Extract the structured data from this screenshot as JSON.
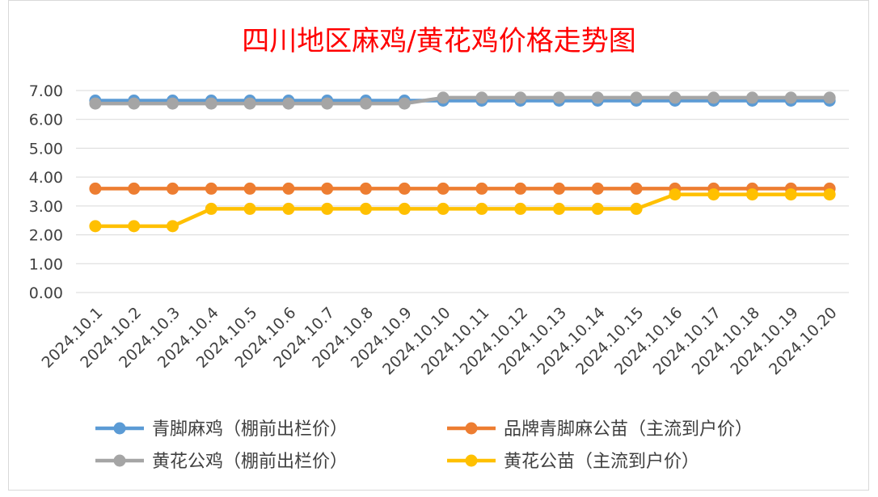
{
  "chart_data": {
    "type": "line",
    "title": "四川地区麻鸡/黄花鸡价格走势图",
    "title_color": "#ff0000",
    "categories": [
      "2024.10.1",
      "2024.10.2",
      "2024.10.3",
      "2024.10.4",
      "2024.10.5",
      "2024.10.6",
      "2024.10.7",
      "2024.10.8",
      "2024.10.9",
      "2024.10.10",
      "2024.10.11",
      "2024.10.12",
      "2024.10.13",
      "2024.10.14",
      "2024.10.15",
      "2024.10.16",
      "2024.10.17",
      "2024.10.18",
      "2024.10.19",
      "2024.10.20"
    ],
    "ylim": [
      0,
      7
    ],
    "yticks": [
      "0.00",
      "1.00",
      "2.00",
      "3.00",
      "4.00",
      "5.00",
      "6.00",
      "7.00"
    ],
    "grid": true,
    "legend_position": "bottom",
    "series": [
      {
        "name": "青脚麻鸡（棚前出栏价）",
        "color": "#5b9bd5",
        "values": [
          6.65,
          6.65,
          6.65,
          6.65,
          6.65,
          6.65,
          6.65,
          6.65,
          6.65,
          6.65,
          6.65,
          6.65,
          6.65,
          6.65,
          6.65,
          6.65,
          6.65,
          6.65,
          6.65,
          6.65
        ]
      },
      {
        "name": "品牌青脚麻公苗（主流到户价）",
        "color": "#ed7d31",
        "values": [
          3.6,
          3.6,
          3.6,
          3.6,
          3.6,
          3.6,
          3.6,
          3.6,
          3.6,
          3.6,
          3.6,
          3.6,
          3.6,
          3.6,
          3.6,
          3.6,
          3.6,
          3.6,
          3.6,
          3.6
        ]
      },
      {
        "name": "黄花公鸡（棚前出栏价）",
        "color": "#a5a5a5",
        "values": [
          6.55,
          6.55,
          6.55,
          6.55,
          6.55,
          6.55,
          6.55,
          6.55,
          6.55,
          6.75,
          6.75,
          6.75,
          6.75,
          6.75,
          6.75,
          6.75,
          6.75,
          6.75,
          6.75,
          6.75
        ]
      },
      {
        "name": "黄花公苗（主流到户价）",
        "color": "#ffc000",
        "values": [
          2.3,
          2.3,
          2.3,
          2.9,
          2.9,
          2.9,
          2.9,
          2.9,
          2.9,
          2.9,
          2.9,
          2.9,
          2.9,
          2.9,
          2.9,
          3.4,
          3.4,
          3.4,
          3.4,
          3.4
        ]
      }
    ]
  }
}
